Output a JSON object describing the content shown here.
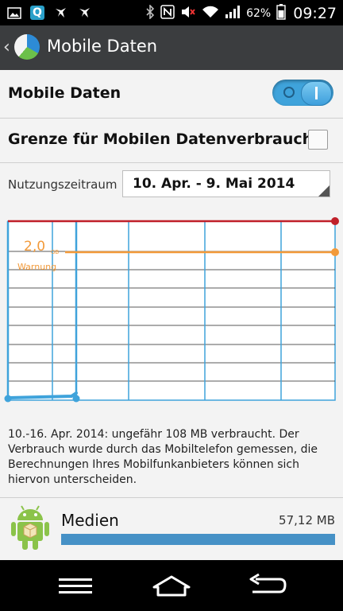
{
  "status_bar": {
    "left_icons": [
      "image-icon",
      "q-app-icon",
      "bird-icon",
      "bird-icon"
    ],
    "right_icons": [
      "bluetooth-icon",
      "nfc-icon",
      "mute-icon",
      "wifi-icon",
      "signal-icon"
    ],
    "battery_percent": "62%",
    "time": "09:27"
  },
  "app_bar": {
    "title": "Mobile Daten"
  },
  "settings": {
    "mobile_data_label": "Mobile Daten",
    "mobile_data_enabled": true,
    "limit_label": "Grenze für Mobilen Datenverbrauch",
    "limit_checked": false,
    "period_label": "Nutzungszeitraum",
    "period_value": "10. Apr. - 9. Mai 2014"
  },
  "chart_data": {
    "type": "line",
    "warning": {
      "value": "2,0",
      "unit": "GB",
      "label": "Warnung"
    },
    "usage_fraction_of_period": 0.3,
    "colors": {
      "limit_line": "#c0202a",
      "warning_line": "#f29a3a",
      "usage_line": "#3fa3db",
      "grid": "#3fa3db"
    }
  },
  "note": "10.-16. Apr. 2014: ungefähr 108 MB verbraucht. Der Verbrauch wurde durch das Mobiltelefon gemessen, die Berechnungen Ihres Mobilfunkanbieters können sich hiervon unterscheiden.",
  "apps": [
    {
      "name": "Medien",
      "size": "57,12 MB",
      "usage_fraction": 1.0,
      "icon": "android-icon"
    }
  ],
  "nav_bar": {
    "buttons": [
      "menu-icon",
      "home-icon",
      "back-icon"
    ]
  }
}
